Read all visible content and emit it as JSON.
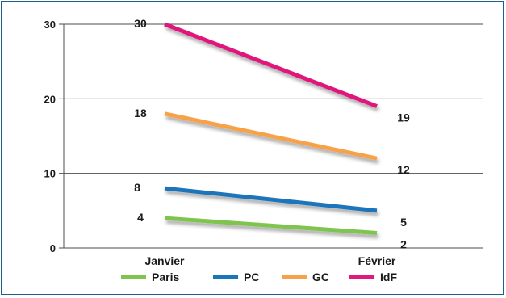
{
  "chart_data": {
    "type": "line",
    "title": "",
    "xlabel": "",
    "ylabel": "",
    "categories": [
      "Janvier",
      "Février"
    ],
    "ylim": [
      0,
      30
    ],
    "yticks": [
      0,
      10,
      20,
      30
    ],
    "grid": true,
    "legend_position": "bottom",
    "series": [
      {
        "name": "Paris",
        "color": "#7ec44f",
        "values": [
          4,
          2
        ],
        "labels": [
          "4",
          "2"
        ]
      },
      {
        "name": "PC",
        "color": "#1b75bb",
        "values": [
          8,
          5
        ],
        "labels": [
          "8",
          "5"
        ]
      },
      {
        "name": "GC",
        "color": "#f7a24a",
        "values": [
          18,
          12
        ],
        "labels": [
          "18",
          "12"
        ]
      },
      {
        "name": "IdF",
        "color": "#e0197d",
        "values": [
          30,
          19
        ],
        "labels": [
          "30",
          "19"
        ]
      }
    ]
  }
}
